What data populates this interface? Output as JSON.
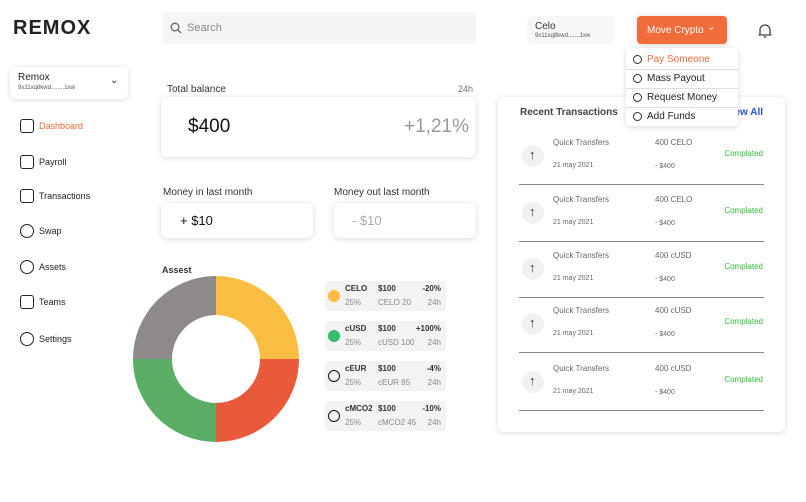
{
  "logo": "REMOX",
  "search_placeholder": "Search",
  "wallet": {
    "name": "Remox",
    "address": "9x11xq8kwd........1xw"
  },
  "nav": [
    "Dashboard",
    "Payroll",
    "Transactions",
    "Swap",
    "Assets",
    "Teams",
    "Settings"
  ],
  "account": {
    "name": "Celo",
    "address": "9x11xq8kwd.......1xw"
  },
  "move_button": "Move Crypto",
  "menu": [
    "Pay Someone",
    "Mass Payout",
    "Request Money",
    "Add Funds"
  ],
  "total_balance": {
    "label": "Total balance",
    "period": "24h",
    "value": "$400",
    "change": "+1,21%"
  },
  "money_in": {
    "label": "Money in last month",
    "value": "+ $10"
  },
  "money_out": {
    "label": "Money out last month",
    "value": "- $10"
  },
  "assets": {
    "title": "Assest",
    "items": [
      {
        "symbol": "CELO",
        "price": "$100",
        "change": "-20%",
        "share": 25,
        "share_label": "25%",
        "holding": "CELO 20",
        "period": "24h",
        "color": "#fbbd42"
      },
      {
        "symbol": "cUSD",
        "price": "$100",
        "change": "+100%",
        "share": 25,
        "share_label": "25%",
        "holding": "cUSD 100",
        "period": "24h",
        "color": "#e85a3a"
      },
      {
        "symbol": "cEUR",
        "price": "$100",
        "change": "-4%",
        "share": 25,
        "share_label": "25%",
        "holding": "cEUR 85",
        "period": "24h",
        "color": "#5aae65"
      },
      {
        "symbol": "cMCO2",
        "price": "$100",
        "change": "-10%",
        "share": 25,
        "share_label": "25%",
        "holding": "cMCO2 45",
        "period": "24h",
        "color": "#8f8a8a"
      }
    ]
  },
  "recent": {
    "title": "Recent Transactions",
    "view_all": "View All",
    "rows": [
      {
        "title": "Quick Transfers",
        "date": "21 may 2021",
        "amount": "400 CELO",
        "fiat": "- $400",
        "status": "Complated"
      },
      {
        "title": "Quick Transfers",
        "date": "21 may 2021",
        "amount": "400 CELO",
        "fiat": "- $400",
        "status": "Complated"
      },
      {
        "title": "Quick Transfers",
        "date": "21 may 2021",
        "amount": "400 cUSD",
        "fiat": "- $400",
        "status": "Complated"
      },
      {
        "title": "Quick Transfers",
        "date": "21 may 2021",
        "amount": "400 cUSD",
        "fiat": "- $400",
        "status": "Complated"
      },
      {
        "title": "Quick Transfers",
        "date": "21 may 2021",
        "amount": "400 cUSD",
        "fiat": "- $400",
        "status": "Complated"
      }
    ]
  }
}
